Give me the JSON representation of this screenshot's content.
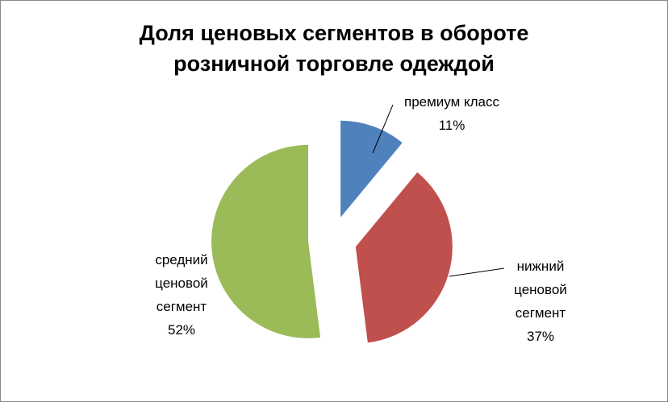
{
  "chart_data": {
    "type": "pie",
    "title": "Доля ценовых сегментов в обороте розничной торговле одеждой",
    "categories": [
      "премиум класс",
      "нижний ценовой сегмент",
      "средний ценовой сегмент"
    ],
    "values": [
      11,
      37,
      52
    ],
    "value_labels": [
      "11%",
      "37%",
      "52%"
    ],
    "colors": [
      "#4f81bd",
      "#c0504d",
      "#9bbb59"
    ]
  }
}
